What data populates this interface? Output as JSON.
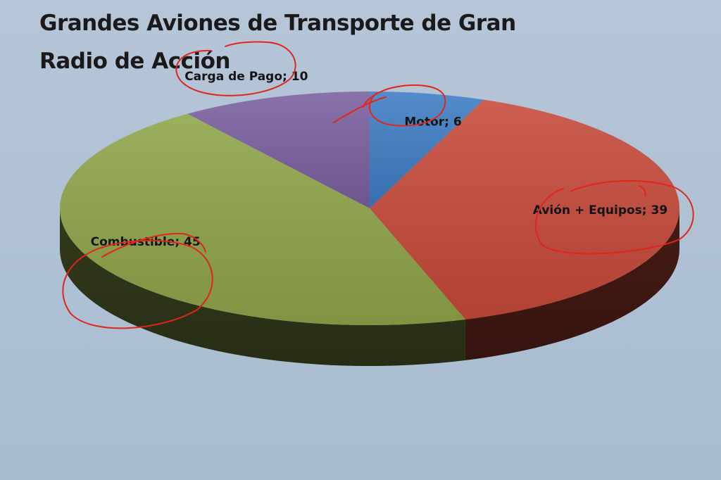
{
  "chart_data": {
    "type": "pie",
    "title_lines": [
      "Grandes Aviones de Transporte de Gran",
      "Radio de Acción"
    ],
    "slices": [
      {
        "label": "Motor",
        "value": 6,
        "color": "#3d7cc4",
        "label_text": "\u0001Motor; 6"
      },
      {
        "label": "Avión + Equipos",
        "value": 39,
        "color": "#c5493a",
        "label_text": "\u0001Avión + Equipos; 39"
      },
      {
        "label": "Combustible",
        "value": 45,
        "color": "#8ea449",
        "label_text": "Combustible; 45"
      },
      {
        "label": "Carga de Pago",
        "value": 10,
        "color": "#7a5f9e",
        "label_text": "Carga de Pago; 10"
      }
    ],
    "style": "3d-pie",
    "legend": "none",
    "data_labels": "category; value"
  }
}
